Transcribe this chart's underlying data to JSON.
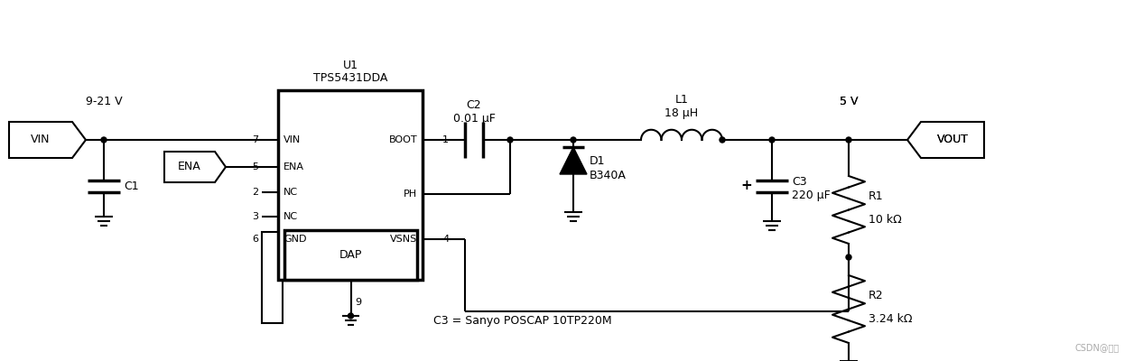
{
  "bg_color": "#ffffff",
  "line_color": "#000000",
  "watermark": "CSDN@易板",
  "lw": 1.5,
  "lw2": 2.5,
  "fig_w": 12.66,
  "fig_h": 4.0,
  "dpi": 100,
  "vin_label": "9-21 V",
  "vout_label": "5 V",
  "ic_name": "U1",
  "ic_part": "TPS5431DDA",
  "c1_label": "C1",
  "c2_label": "C2",
  "c2_val": "0.01 μF",
  "l1_label": "L1",
  "l1_val": "18 μH",
  "d1_label": "D1",
  "d1_val": "B340A",
  "c3_label": "C3",
  "c3_val": "220 μF",
  "r1_label": "R1",
  "r1_val": "10 kΩ",
  "r2_label": "R2",
  "r2_val": "3.24 kΩ",
  "c3_note": "C3 = Sanyo POSCAP 10TP220M",
  "pin7": "7",
  "pin5": "5",
  "pin2": "2",
  "pin3": "3",
  "pin6": "6",
  "pin1": "1",
  "pin4": "4",
  "pin9": "9",
  "pVIN": "VIN",
  "pENA": "ENA",
  "pNC": "NC",
  "pGND": "GND",
  "pBOOT": "BOOT",
  "pPH": "PH",
  "pVSNS": "VSNS",
  "pDAP": "DAP"
}
